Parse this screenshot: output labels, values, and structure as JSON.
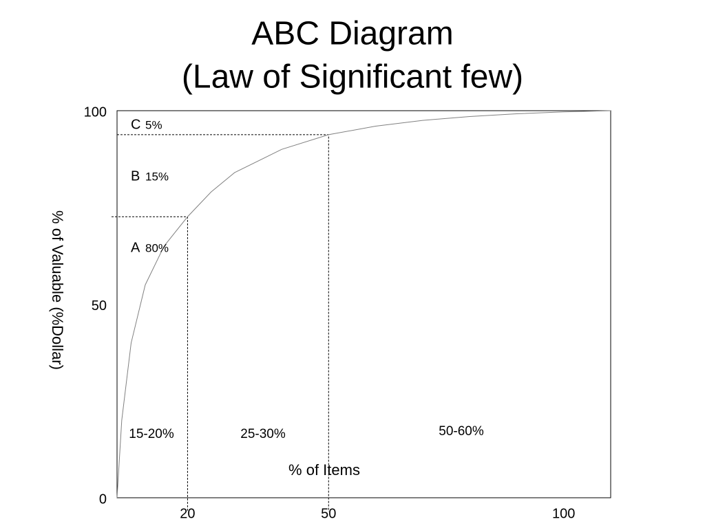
{
  "chart_data": {
    "type": "line",
    "title": [
      "ABC Diagram",
      "(Law of Significant few)"
    ],
    "x_label": "% of Items",
    "y_label": "% of  Valuable (%Dollar)",
    "x": [
      5,
      6,
      8,
      11,
      15,
      20,
      25,
      30,
      40,
      50,
      60,
      70,
      80,
      90,
      100,
      110
    ],
    "series": [
      {
        "color": "#808080",
        "values": [
          0,
          20,
          40,
          55,
          65,
          72.6,
          79,
          84,
          90,
          93.8,
          96,
          97.5,
          98.5,
          99.2,
          99.7,
          100
        ]
      }
    ],
    "xlim": [
      5,
      110
    ],
    "xticks": [
      20,
      50,
      100
    ],
    "ylim": [
      0,
      100
    ],
    "yticks": [
      0,
      50,
      100
    ],
    "markers": [
      {
        "x": 20,
        "y": 72.6
      },
      {
        "x": 50,
        "y": 93.8
      }
    ],
    "zones": [
      {
        "name": "C",
        "share": "5%"
      },
      {
        "name": "B",
        "share": "15%"
      },
      {
        "name": "A",
        "share": "80%"
      }
    ],
    "item_shares": [
      "15-20%",
      "25-30%",
      "50-60%"
    ]
  }
}
